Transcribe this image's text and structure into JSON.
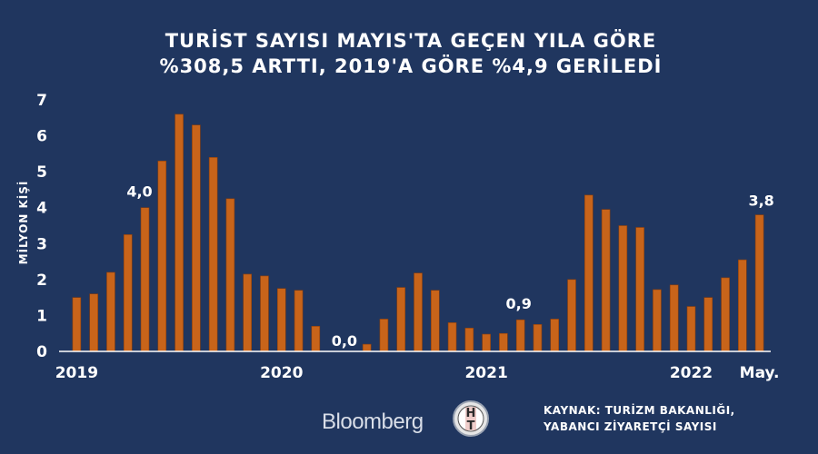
{
  "chart_data": {
    "type": "bar",
    "title": [
      "TURİST SAYISI MAYIS'TA GEÇEN YILA GÖRE",
      "%308,5 ARTTI, 2019'A GÖRE %4,9 GERİLEDİ"
    ],
    "ylabel": "MİLYON KİŞİ",
    "ylim": [
      0,
      7
    ],
    "yticks": [
      "0",
      "1",
      "2",
      "3",
      "4",
      "5",
      "6",
      "7"
    ],
    "xtick_labels": [
      "2019",
      "2020",
      "2021",
      "2022",
      "May."
    ],
    "values": [
      1.5,
      1.6,
      2.2,
      3.25,
      4.0,
      5.3,
      6.6,
      6.3,
      5.4,
      4.25,
      2.15,
      2.1,
      1.75,
      1.7,
      0.7,
      0.0,
      0.0,
      0.2,
      0.9,
      1.78,
      2.18,
      1.7,
      0.8,
      0.65,
      0.48,
      0.5,
      0.88,
      0.75,
      0.9,
      2.0,
      4.35,
      3.95,
      3.5,
      3.45,
      1.72,
      1.85,
      1.25,
      1.5,
      2.05,
      2.55,
      3.8
    ],
    "bar_color": "#c8641a",
    "annotations": [
      {
        "index": 4,
        "text": "4,0"
      },
      {
        "index": 16,
        "text": "0,0"
      },
      {
        "index": 26,
        "text": "0,9"
      },
      {
        "index": 40,
        "text": "3,8"
      }
    ],
    "grid": false
  },
  "footer": {
    "logo_text": "Bloomberg",
    "source_line1": "KAYNAK: TURİZM BAKANLIĞI,",
    "source_line2": "YABANCI ZİYARETÇİ SAYISI",
    "ht_top": "H",
    "ht_bottom": "T"
  },
  "colors": {
    "background": "#20365f",
    "bar": "#c8641a",
    "axis": "#ffffff"
  }
}
